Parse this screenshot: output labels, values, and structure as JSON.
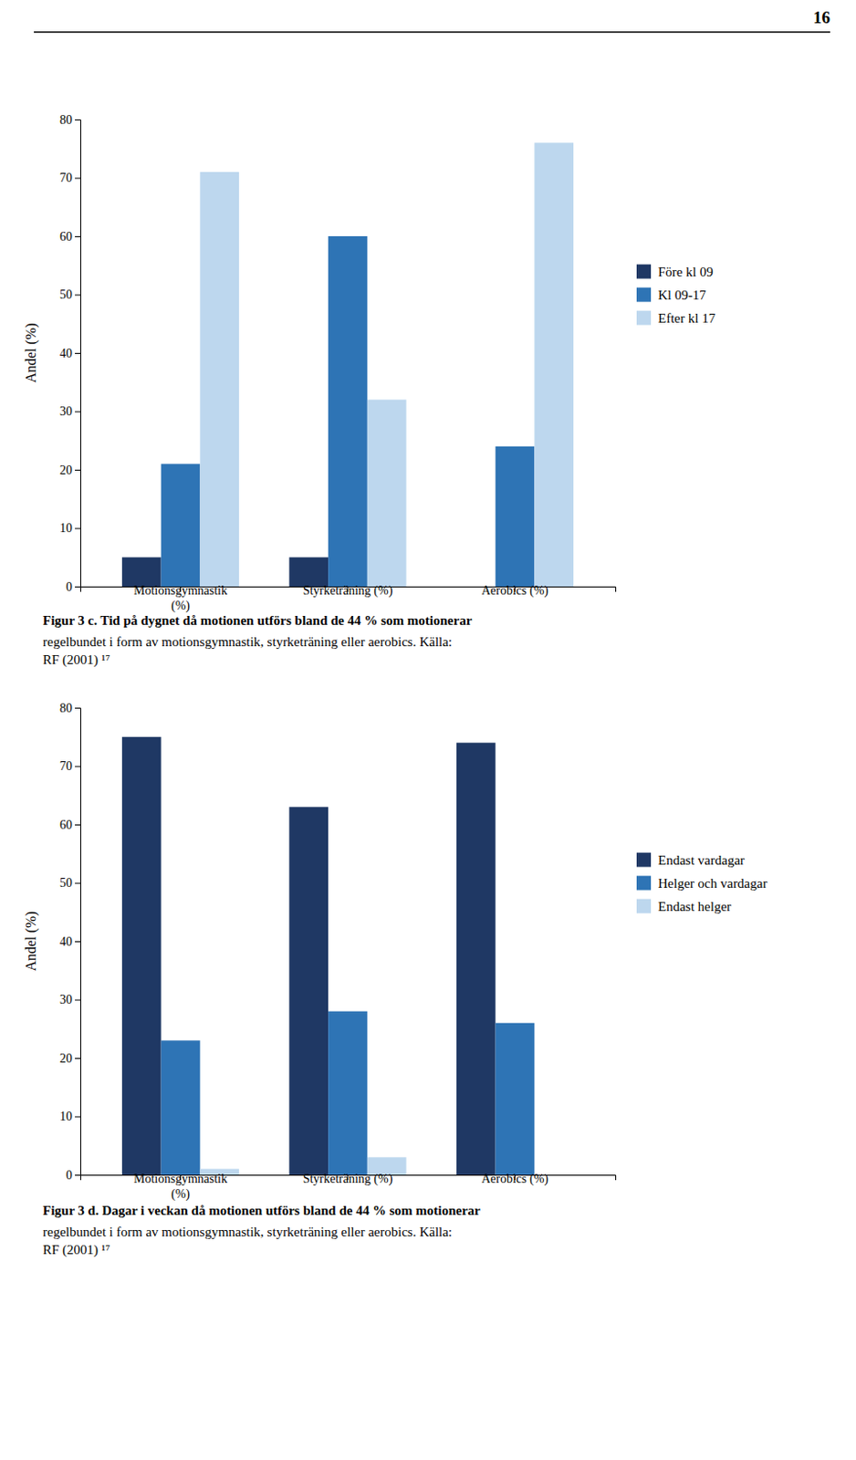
{
  "chart_data": [
    {
      "type": "bar",
      "annotations": [
        "16"
      ],
      "title": "Figur 3 c. Tid på dygnet då motionen utförs bland de 44 % som motionerar",
      "subtitle": "regelbundet i form av motionsgymnastik, styrketräning eller aerobics. Källa:\nRF (2001) ¹⁷",
      "categories": [
        "Motionsgymnastik\n(%)",
        "Styrketräning (%)",
        "Aerobics (%)"
      ],
      "series": [
        {
          "name": "Före kl 09",
          "color": "#1F3864",
          "values": [
            5,
            5,
            0
          ]
        },
        {
          "name": "Kl 09-17",
          "color": "#2E74B5",
          "values": [
            21,
            60,
            24
          ]
        },
        {
          "name": "Efter kl 17",
          "color": "#BDD7EE",
          "values": [
            71,
            32,
            76
          ]
        }
      ],
      "y_label": "Andel (%)",
      "ylim": [
        0,
        80
      ],
      "yticks": [
        0,
        10,
        20,
        30,
        40,
        50,
        60,
        70,
        80
      ],
      "grid": false,
      "legend": "right"
    },
    {
      "type": "bar",
      "title": "Figur 3 d. Dagar i veckan då motionen utförs bland de 44 % som motionerar",
      "subtitle": "regelbundet i form av motionsgymnastik, styrketräning eller aerobics. Källa:\nRF (2001) ¹⁷",
      "categories": [
        "Motionsgymnastik\n(%)",
        "Styrketräning (%)",
        "Aerobics (%)"
      ],
      "series": [
        {
          "name": "Endast vardagar",
          "color": "#1F3864",
          "values": [
            75,
            63,
            74
          ]
        },
        {
          "name": "Helger och vardagar",
          "color": "#2E74B5",
          "values": [
            23,
            28,
            26
          ]
        },
        {
          "name": "Endast helger",
          "color": "#BDD7EE",
          "values": [
            1,
            3,
            0
          ]
        }
      ],
      "y_label": "Andel (%)",
      "ylim": [
        0,
        80
      ],
      "yticks": [
        0,
        10,
        20,
        30,
        40,
        50,
        60,
        70,
        80
      ],
      "grid": false,
      "legend": "right"
    }
  ]
}
